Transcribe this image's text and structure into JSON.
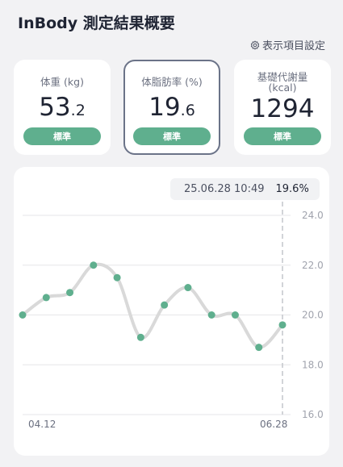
{
  "header": {
    "title": "InBody 測定結果概要",
    "settings_label": "表示項目設定"
  },
  "metrics": [
    {
      "label": "体重 (kg)",
      "value_int": "53",
      "value_dec": ".2",
      "status": "標準",
      "selected": false
    },
    {
      "label": "体脂肪率 (%)",
      "value_int": "19",
      "value_dec": ".6",
      "status": "標準",
      "selected": true
    },
    {
      "label": "基礎代謝量",
      "label_sub": "(kcal)",
      "value_int": "1294",
      "value_dec": "",
      "status": "標準",
      "selected": false
    }
  ],
  "tooltip": {
    "datetime": "25.06.28 10:49",
    "value": "19.6%"
  },
  "colors": {
    "accent": "#5faf8e",
    "selected_border": "#6b7388",
    "line": "#d9d9d9"
  },
  "chart_data": {
    "type": "line",
    "x_first_label": "04.12",
    "x_last_label": "06.28",
    "y_ticks": [
      "24.0",
      "22.0",
      "20.0",
      "18.0",
      "16.0"
    ],
    "ylim": [
      16.0,
      24.0
    ],
    "values": [
      20.0,
      20.7,
      20.9,
      22.0,
      21.5,
      19.1,
      20.4,
      21.1,
      20.0,
      20.0,
      18.7,
      19.6
    ],
    "selected_index": 11
  }
}
